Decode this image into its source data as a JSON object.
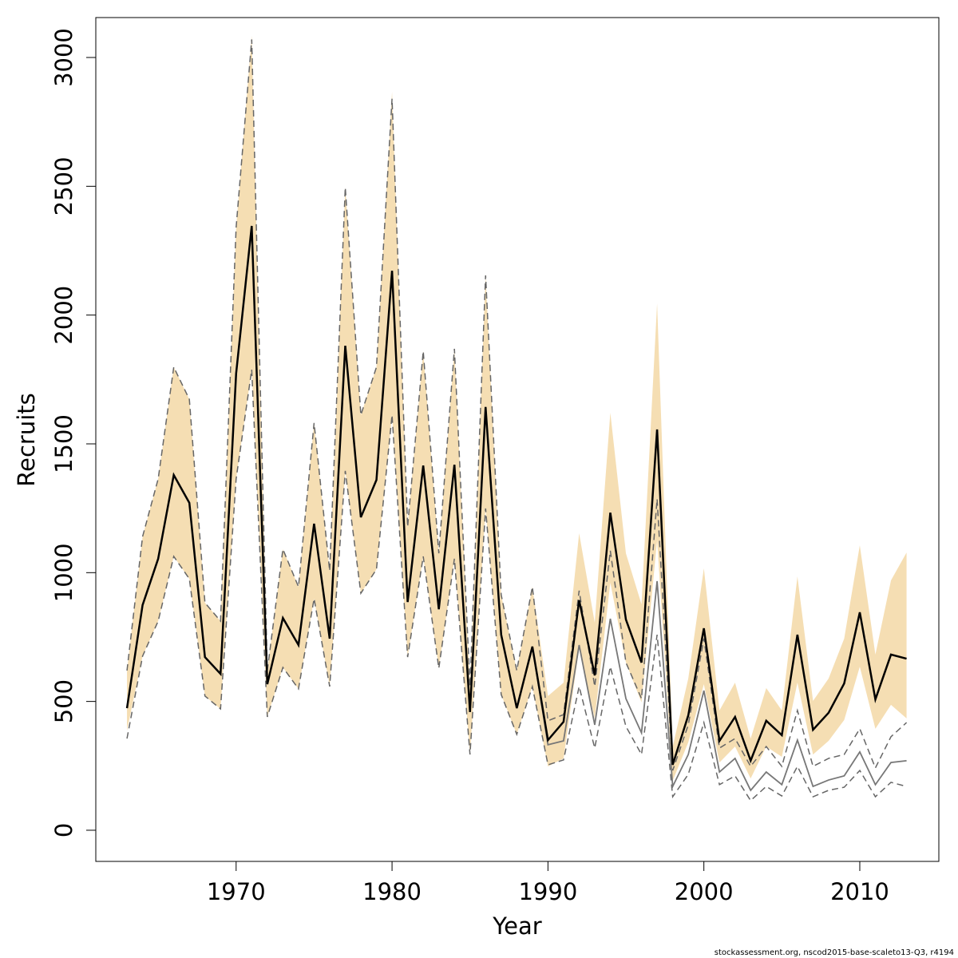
{
  "chart_data": {
    "type": "line",
    "xlabel": "Year",
    "ylabel": "Recruits",
    "footnote": "stockassessment.org, nscod2015-base-scaleto13-Q3, r4194",
    "x": [
      1963,
      1964,
      1965,
      1966,
      1967,
      1968,
      1969,
      1970,
      1971,
      1972,
      1973,
      1974,
      1975,
      1976,
      1977,
      1978,
      1979,
      1980,
      1981,
      1982,
      1983,
      1984,
      1985,
      1986,
      1987,
      1988,
      1989,
      1990,
      1991,
      1992,
      1993,
      1994,
      1995,
      1996,
      1997,
      1998,
      1999,
      2000,
      2001,
      2002,
      2003,
      2004,
      2005,
      2006,
      2007,
      2008,
      2009,
      2010,
      2011,
      2012,
      2013
    ],
    "band": {
      "color": "#f5deb3",
      "high": [
        620,
        1140,
        1364,
        1798,
        1673,
        883,
        812,
        2340,
        3084,
        620,
        1091,
        945,
        1581,
        1007,
        2495,
        1612,
        1798,
        2867,
        1178,
        1860,
        1075,
        1869,
        558,
        2154,
        914,
        620,
        945,
        521,
        573,
        1153,
        806,
        1621,
        1075,
        877,
        2045,
        325,
        589,
        1017,
        465,
        573,
        356,
        552,
        465,
        985,
        502,
        589,
        744,
        1106,
        682,
        970,
        1078
      ],
      "low": [
        387,
        676,
        812,
        1063,
        976,
        521,
        471,
        1364,
        1788,
        440,
        632,
        549,
        899,
        558,
        1395,
        920,
        1013,
        1612,
        672,
        1063,
        629,
        1054,
        294,
        1249,
        527,
        372,
        558,
        248,
        279,
        707,
        434,
        961,
        651,
        496,
        1125,
        192,
        341,
        567,
        263,
        325,
        201,
        325,
        285,
        573,
        294,
        347,
        428,
        635,
        394,
        487,
        434
      ]
    },
    "series": [
      {
        "color": "#666666",
        "dash": true,
        "width": 1.5,
        "values": [
          620,
          1140,
          1364,
          1798,
          1673,
          883,
          812,
          2340,
          3070,
          620,
          1091,
          945,
          1581,
          1007,
          2495,
          1612,
          1798,
          2840,
          1178,
          1860,
          1075,
          1869,
          558,
          2154,
          914,
          620,
          945,
          425,
          449,
          930,
          558,
          1085,
          651,
          511,
          1286,
          232,
          409,
          744,
          319,
          356,
          248,
          325,
          248,
          465,
          248,
          279,
          294,
          394,
          242,
          363,
          418
        ]
      },
      {
        "color": "#666666",
        "dash": true,
        "width": 1.5,
        "values": [
          356,
          676,
          812,
          1063,
          976,
          521,
          471,
          1364,
          1788,
          440,
          632,
          549,
          899,
          558,
          1395,
          920,
          1013,
          1612,
          672,
          1063,
          629,
          1054,
          294,
          1249,
          527,
          372,
          558,
          254,
          273,
          558,
          319,
          635,
          403,
          294,
          759,
          130,
          217,
          418,
          177,
          211,
          115,
          170,
          133,
          248,
          130,
          155,
          167,
          232,
          130,
          186,
          170
        ]
      },
      {
        "color": "#777777",
        "dash": false,
        "width": 1.8,
        "values": [
          474,
          874,
          1054,
          1379,
          1271,
          672,
          607,
          1773,
          2346,
          567,
          824,
          719,
          1190,
          744,
          1881,
          1215,
          1360,
          2172,
          886,
          1416,
          858,
          1419,
          459,
          1643,
          759,
          474,
          713,
          332,
          347,
          719,
          409,
          821,
          511,
          378,
          967,
          170,
          294,
          542,
          226,
          279,
          155,
          226,
          177,
          350,
          170,
          195,
          211,
          304,
          177,
          263,
          270
        ]
      },
      {
        "color": "#000000",
        "dash": false,
        "width": 2.5,
        "values": [
          474,
          874,
          1054,
          1379,
          1271,
          672,
          607,
          1773,
          2346,
          567,
          824,
          719,
          1190,
          744,
          1881,
          1215,
          1360,
          2172,
          886,
          1416,
          858,
          1419,
          459,
          1643,
          759,
          474,
          713,
          350,
          421,
          893,
          601,
          1233,
          818,
          651,
          1556,
          254,
          446,
          784,
          347,
          440,
          270,
          425,
          369,
          759,
          390,
          456,
          570,
          846,
          508,
          682,
          666
        ]
      }
    ],
    "xlim": [
      1961,
      2015.07
    ],
    "ylim": [
      -121,
      3155
    ],
    "xticks": [
      1970,
      1980,
      1990,
      2000,
      2010
    ],
    "yticks": [
      0,
      500,
      1000,
      1500,
      2000,
      2500,
      3000
    ]
  }
}
